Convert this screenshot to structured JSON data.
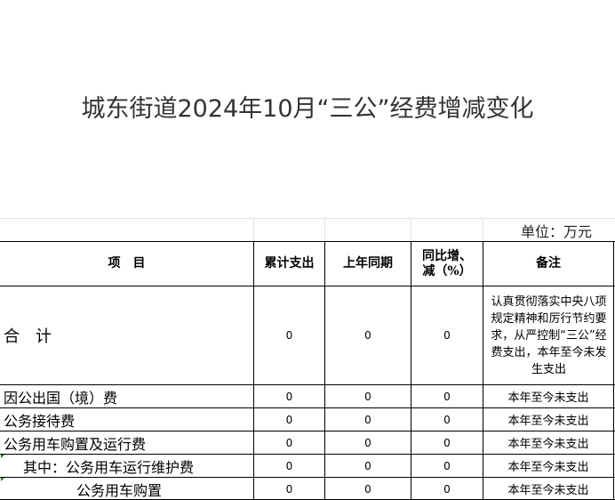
{
  "title": "城东街道2024年10月“三公”经费增减变化",
  "unit": "单位：万元",
  "headers": {
    "item": "项　目",
    "cumulative": "累计支出",
    "last_year": "上年同期",
    "yoy_line1": "同比增、",
    "yoy_line2": "减（%）",
    "note": "备注"
  },
  "total": {
    "label": "合　计",
    "cumulative": "0",
    "last_year": "0",
    "yoy": "0",
    "note": "认真贯彻落实中央八项规定精神和厉行节约要求，从严控制“三公”经费支出，本年至今未发生支出"
  },
  "rows": [
    {
      "label": "因公出国（境）费",
      "cumulative": "0",
      "last_year": "0",
      "yoy": "0",
      "note": "本年至今未支出"
    },
    {
      "label": "公务接待费",
      "cumulative": "0",
      "last_year": "0",
      "yoy": "0",
      "note": "本年至今未支出"
    },
    {
      "label": "公务用车购置及运行费",
      "cumulative": "0",
      "last_year": "0",
      "yoy": "0",
      "note": "本年至今未支出"
    },
    {
      "label": "其中：公务用车运行维护费",
      "cumulative": "0",
      "last_year": "0",
      "yoy": "0",
      "note": "本年至今未支出"
    },
    {
      "label": "公务用车购置",
      "cumulative": "0",
      "last_year": "0",
      "yoy": "0",
      "note": "本年至今未支出"
    }
  ]
}
